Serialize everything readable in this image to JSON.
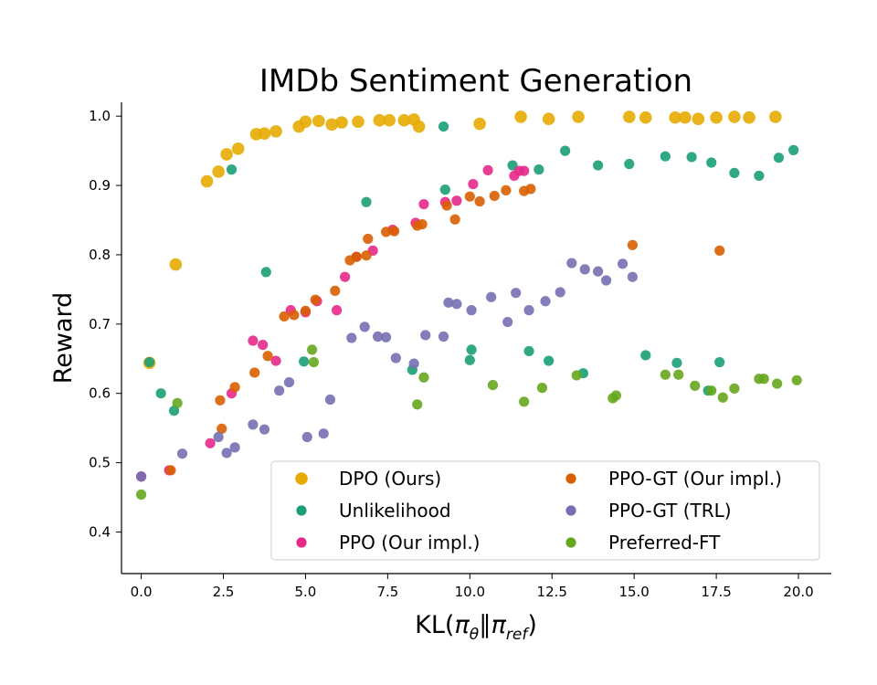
{
  "chart_data": {
    "type": "scatter",
    "title": "IMDb Sentiment Generation",
    "ylabel": "Reward",
    "xlabel_parts": {
      "prefix": "KL(",
      "p1": "π",
      "s1": "θ",
      "sep": "∥",
      "p2": "π",
      "s2": "ref",
      "suffix": ")"
    },
    "xlim": [
      -0.6,
      21.0
    ],
    "ylim": [
      0.34,
      1.02
    ],
    "xticks": [
      0.0,
      2.5,
      5.0,
      7.5,
      10.0,
      12.5,
      15.0,
      17.5,
      20.0
    ],
    "xtick_labels": [
      "0.0",
      "2.5",
      "5.0",
      "7.5",
      "10.0",
      "12.5",
      "15.0",
      "17.5",
      "20.0"
    ],
    "yticks": [
      0.4,
      0.5,
      0.6,
      0.7,
      0.8,
      0.9,
      1.0
    ],
    "ytick_labels": [
      "0.4",
      "0.5",
      "0.6",
      "0.7",
      "0.8",
      "0.9",
      "1.0"
    ],
    "legend_position": "lower-right",
    "series": [
      {
        "name": "DPO (Ours)",
        "color": "#e6ab02",
        "marker_size": "large",
        "points": [
          [
            0.25,
            0.644
          ],
          [
            1.05,
            0.786
          ],
          [
            2.0,
            0.906
          ],
          [
            2.35,
            0.92
          ],
          [
            2.6,
            0.945
          ],
          [
            2.95,
            0.953
          ],
          [
            3.5,
            0.974
          ],
          [
            3.75,
            0.975
          ],
          [
            4.1,
            0.978
          ],
          [
            4.8,
            0.985
          ],
          [
            5.0,
            0.992
          ],
          [
            5.4,
            0.993
          ],
          [
            5.8,
            0.988
          ],
          [
            6.1,
            0.991
          ],
          [
            6.6,
            0.992
          ],
          [
            7.25,
            0.994
          ],
          [
            7.55,
            0.994
          ],
          [
            8.0,
            0.994
          ],
          [
            8.3,
            0.995
          ],
          [
            8.45,
            0.985
          ],
          [
            10.3,
            0.989
          ],
          [
            11.55,
            0.999
          ],
          [
            12.4,
            0.996
          ],
          [
            13.3,
            0.999
          ],
          [
            14.85,
            0.999
          ],
          [
            15.35,
            0.998
          ],
          [
            16.25,
            0.998
          ],
          [
            16.55,
            0.998
          ],
          [
            16.95,
            0.996
          ],
          [
            17.5,
            0.998
          ],
          [
            18.05,
            0.999
          ],
          [
            18.5,
            0.998
          ],
          [
            19.3,
            0.999
          ]
        ]
      },
      {
        "name": "Unlikelihood",
        "color": "#1b9e77",
        "marker_size": "small",
        "points": [
          [
            0.25,
            0.645
          ],
          [
            0.6,
            0.6
          ],
          [
            1.0,
            0.575
          ],
          [
            2.75,
            0.923
          ],
          [
            3.8,
            0.775
          ],
          [
            4.95,
            0.646
          ],
          [
            6.85,
            0.876
          ],
          [
            8.25,
            0.634
          ],
          [
            9.2,
            0.985
          ],
          [
            9.25,
            0.894
          ],
          [
            10.0,
            0.648
          ],
          [
            10.05,
            0.663
          ],
          [
            11.3,
            0.929
          ],
          [
            11.8,
            0.661
          ],
          [
            12.1,
            0.923
          ],
          [
            12.4,
            0.647
          ],
          [
            12.9,
            0.95
          ],
          [
            13.45,
            0.629
          ],
          [
            13.9,
            0.929
          ],
          [
            14.85,
            0.931
          ],
          [
            15.35,
            0.655
          ],
          [
            15.95,
            0.942
          ],
          [
            16.3,
            0.644
          ],
          [
            16.75,
            0.941
          ],
          [
            17.25,
            0.604
          ],
          [
            17.35,
            0.933
          ],
          [
            17.6,
            0.645
          ],
          [
            18.05,
            0.918
          ],
          [
            18.8,
            0.914
          ],
          [
            19.4,
            0.94
          ],
          [
            19.85,
            0.951
          ]
        ]
      },
      {
        "name": "PPO (Our impl.)",
        "color": "#e7298a",
        "marker_size": "small",
        "points": [
          [
            0.0,
            0.48
          ],
          [
            0.85,
            0.489
          ],
          [
            2.1,
            0.528
          ],
          [
            2.75,
            0.6
          ],
          [
            3.4,
            0.676
          ],
          [
            3.7,
            0.67
          ],
          [
            4.1,
            0.647
          ],
          [
            4.55,
            0.72
          ],
          [
            5.0,
            0.717
          ],
          [
            5.35,
            0.733
          ],
          [
            5.95,
            0.72
          ],
          [
            6.2,
            0.768
          ],
          [
            6.55,
            0.797
          ],
          [
            7.05,
            0.806
          ],
          [
            7.65,
            0.836
          ],
          [
            8.35,
            0.846
          ],
          [
            8.6,
            0.873
          ],
          [
            9.25,
            0.876
          ],
          [
            9.6,
            0.878
          ],
          [
            10.1,
            0.902
          ],
          [
            10.55,
            0.922
          ],
          [
            11.35,
            0.914
          ],
          [
            11.5,
            0.921
          ],
          [
            11.65,
            0.921
          ]
        ]
      },
      {
        "name": "PPO-GT (Our impl.)",
        "color": "#d95f02",
        "marker_size": "small",
        "points": [
          [
            0.9,
            0.489
          ],
          [
            2.4,
            0.59
          ],
          [
            2.45,
            0.549
          ],
          [
            2.85,
            0.609
          ],
          [
            3.45,
            0.63
          ],
          [
            3.85,
            0.654
          ],
          [
            4.35,
            0.711
          ],
          [
            4.65,
            0.713
          ],
          [
            5.0,
            0.719
          ],
          [
            5.3,
            0.735
          ],
          [
            5.9,
            0.748
          ],
          [
            6.35,
            0.792
          ],
          [
            6.55,
            0.797
          ],
          [
            6.85,
            0.799
          ],
          [
            6.9,
            0.823
          ],
          [
            7.45,
            0.833
          ],
          [
            7.7,
            0.834
          ],
          [
            8.4,
            0.842
          ],
          [
            8.55,
            0.844
          ],
          [
            9.3,
            0.871
          ],
          [
            9.55,
            0.851
          ],
          [
            10.0,
            0.884
          ],
          [
            10.3,
            0.877
          ],
          [
            10.75,
            0.885
          ],
          [
            11.1,
            0.893
          ],
          [
            11.65,
            0.892
          ],
          [
            11.85,
            0.895
          ],
          [
            14.95,
            0.814
          ],
          [
            17.6,
            0.806
          ]
        ]
      },
      {
        "name": "PPO-GT (TRL)",
        "color": "#7570b3",
        "marker_size": "small",
        "points": [
          [
            0.0,
            0.48
          ],
          [
            1.25,
            0.513
          ],
          [
            2.35,
            0.537
          ],
          [
            2.6,
            0.514
          ],
          [
            2.85,
            0.522
          ],
          [
            3.4,
            0.555
          ],
          [
            3.75,
            0.548
          ],
          [
            4.2,
            0.604
          ],
          [
            4.5,
            0.616
          ],
          [
            5.05,
            0.537
          ],
          [
            5.55,
            0.542
          ],
          [
            5.75,
            0.591
          ],
          [
            6.4,
            0.68
          ],
          [
            6.8,
            0.696
          ],
          [
            7.2,
            0.682
          ],
          [
            7.45,
            0.681
          ],
          [
            7.75,
            0.651
          ],
          [
            8.3,
            0.643
          ],
          [
            8.65,
            0.684
          ],
          [
            9.2,
            0.682
          ],
          [
            9.35,
            0.731
          ],
          [
            9.6,
            0.729
          ],
          [
            10.05,
            0.72
          ],
          [
            10.65,
            0.739
          ],
          [
            11.15,
            0.703
          ],
          [
            11.4,
            0.745
          ],
          [
            11.8,
            0.72
          ],
          [
            12.3,
            0.733
          ],
          [
            12.75,
            0.746
          ],
          [
            13.1,
            0.788
          ],
          [
            13.5,
            0.779
          ],
          [
            13.9,
            0.776
          ],
          [
            14.15,
            0.763
          ],
          [
            14.65,
            0.787
          ],
          [
            14.95,
            0.768
          ]
        ]
      },
      {
        "name": "Preferred-FT",
        "color": "#66a61e",
        "marker_size": "small",
        "points": [
          [
            0.0,
            0.454
          ],
          [
            1.1,
            0.586
          ],
          [
            5.2,
            0.663
          ],
          [
            5.25,
            0.645
          ],
          [
            8.4,
            0.584
          ],
          [
            8.6,
            0.623
          ],
          [
            10.7,
            0.612
          ],
          [
            11.65,
            0.588
          ],
          [
            12.2,
            0.608
          ],
          [
            13.25,
            0.626
          ],
          [
            14.35,
            0.593
          ],
          [
            14.45,
            0.597
          ],
          [
            15.95,
            0.627
          ],
          [
            16.35,
            0.627
          ],
          [
            16.85,
            0.611
          ],
          [
            17.35,
            0.604
          ],
          [
            17.7,
            0.594
          ],
          [
            18.05,
            0.607
          ],
          [
            18.8,
            0.621
          ],
          [
            18.95,
            0.621
          ],
          [
            19.35,
            0.614
          ],
          [
            19.95,
            0.619
          ]
        ]
      }
    ]
  }
}
